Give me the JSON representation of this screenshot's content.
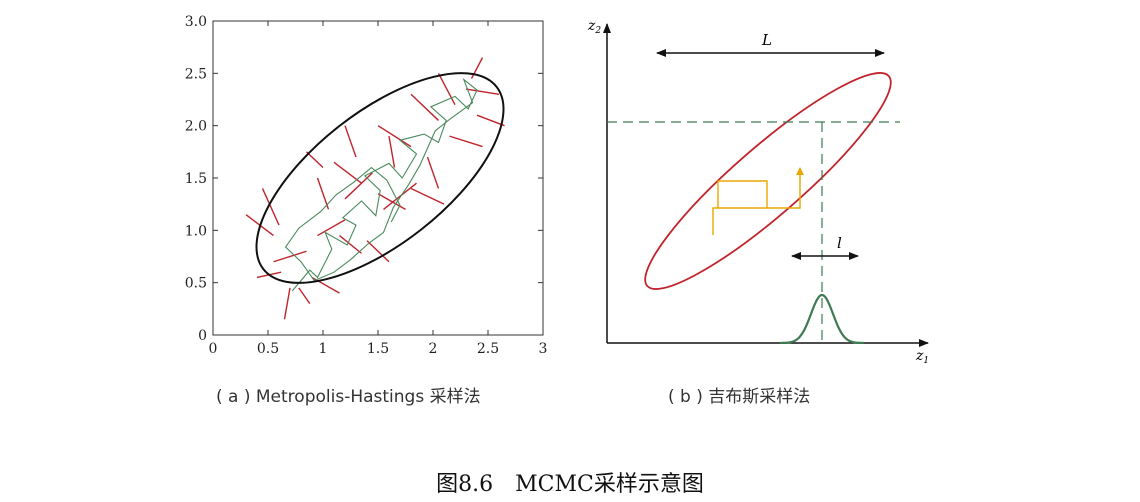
{
  "figure": {
    "title": "图8.6　MCMC采样示意图",
    "panel_a": {
      "caption": "( a ) Metropolis-Hastings 采样法"
    },
    "panel_b": {
      "caption": "( b ) 吉布斯采样法",
      "z1_label": "z",
      "z1_sub": "1",
      "z2_label": "z",
      "z2_sub": "2",
      "L_label": "L",
      "l_label": "l"
    }
  },
  "chart_data": {
    "type": "scatter",
    "xlim": [
      0,
      3
    ],
    "ylim": [
      0,
      3
    ],
    "x_ticks": [
      "0",
      "0.5",
      "1",
      "1.5",
      "2",
      "2.5",
      "3"
    ],
    "y_ticks": [
      "0",
      "0.5",
      "1.0",
      "1.5",
      "2.0",
      "2.5",
      "3.0"
    ],
    "grid": false,
    "colors": {
      "ellipse": "#111111",
      "accepted": "#4a8a5c",
      "rejected": "#c0242b"
    },
    "series": [
      {
        "path": [
          [
            0.72,
            0.42
          ],
          [
            0.88,
            0.62
          ],
          [
            0.95,
            0.55
          ],
          [
            1.08,
            0.82
          ],
          [
            1.02,
            0.98
          ],
          [
            1.22,
            0.86
          ],
          [
            1.3,
            1.05
          ],
          [
            1.18,
            1.12
          ],
          [
            1.35,
            1.28
          ],
          [
            1.48,
            1.14
          ],
          [
            1.52,
            1.38
          ],
          [
            1.38,
            1.52
          ],
          [
            1.6,
            1.64
          ],
          [
            1.72,
            1.5
          ],
          [
            1.85,
            1.73
          ],
          [
            1.7,
            1.86
          ],
          [
            1.92,
            1.92
          ],
          [
            2.05,
            1.84
          ],
          [
            2.12,
            2.05
          ],
          [
            1.98,
            2.18
          ],
          [
            2.2,
            2.28
          ],
          [
            2.32,
            2.16
          ],
          [
            2.4,
            2.34
          ],
          [
            2.28,
            2.44
          ],
          [
            2.36,
            2.22
          ],
          [
            2.15,
            2.06
          ],
          [
            2.02,
            1.95
          ],
          [
            1.88,
            1.62
          ],
          [
            1.78,
            1.44
          ],
          [
            1.64,
            1.22
          ],
          [
            1.55,
            0.98
          ],
          [
            1.42,
            0.88
          ],
          [
            1.25,
            0.72
          ],
          [
            1.1,
            0.6
          ],
          [
            0.92,
            0.52
          ],
          [
            0.8,
            0.7
          ],
          [
            0.66,
            0.84
          ],
          [
            0.78,
            1.02
          ],
          [
            0.98,
            1.18
          ],
          [
            1.12,
            1.34
          ],
          [
            1.28,
            1.46
          ],
          [
            1.44,
            1.6
          ],
          [
            1.58,
            1.48
          ],
          [
            1.7,
            1.24
          ],
          [
            1.62,
            1.08
          ]
        ]
      },
      {
        "segments": [
          [
            [
              0.55,
              0.95
            ],
            [
              0.3,
              1.15
            ]
          ],
          [
            [
              0.62,
              0.6
            ],
            [
              0.4,
              0.55
            ]
          ],
          [
            [
              0.7,
              0.45
            ],
            [
              0.65,
              0.15
            ]
          ],
          [
            [
              0.78,
              0.45
            ],
            [
              0.88,
              0.3
            ]
          ],
          [
            [
              0.9,
              0.55
            ],
            [
              1.15,
              0.4
            ]
          ],
          [
            [
              0.6,
              1.05
            ],
            [
              0.45,
              1.4
            ]
          ],
          [
            [
              0.95,
              0.95
            ],
            [
              1.2,
              1.1
            ]
          ],
          [
            [
              1.05,
              1.2
            ],
            [
              0.95,
              1.5
            ]
          ],
          [
            [
              1.2,
              1.3
            ],
            [
              1.45,
              1.55
            ]
          ],
          [
            [
              1.35,
              1.45
            ],
            [
              1.1,
              1.65
            ]
          ],
          [
            [
              1.4,
              0.9
            ],
            [
              1.6,
              0.7
            ]
          ],
          [
            [
              1.55,
              1.2
            ],
            [
              1.85,
              1.45
            ]
          ],
          [
            [
              1.65,
              1.6
            ],
            [
              1.6,
              1.9
            ]
          ],
          [
            [
              1.8,
              1.4
            ],
            [
              2.1,
              1.25
            ]
          ],
          [
            [
              1.8,
              1.8
            ],
            [
              1.5,
              2.0
            ]
          ],
          [
            [
              1.95,
              1.7
            ],
            [
              2.05,
              1.4
            ]
          ],
          [
            [
              2.05,
              2.05
            ],
            [
              1.8,
              2.3
            ]
          ],
          [
            [
              2.15,
              1.9
            ],
            [
              2.45,
              1.8
            ]
          ],
          [
            [
              2.2,
              2.2
            ],
            [
              2.05,
              2.5
            ]
          ],
          [
            [
              2.3,
              2.35
            ],
            [
              2.6,
              2.3
            ]
          ],
          [
            [
              2.4,
              2.1
            ],
            [
              2.65,
              2.0
            ]
          ],
          [
            [
              2.35,
              2.45
            ],
            [
              2.45,
              2.65
            ]
          ],
          [
            [
              1.3,
              1.7
            ],
            [
              1.2,
              2.0
            ]
          ],
          [
            [
              1.0,
              1.6
            ],
            [
              0.85,
              1.75
            ]
          ],
          [
            [
              0.85,
              0.8
            ],
            [
              0.55,
              0.7
            ]
          ],
          [
            [
              1.5,
              1.35
            ],
            [
              1.75,
              1.2
            ]
          ],
          [
            [
              1.15,
              0.95
            ],
            [
              1.35,
              0.78
            ]
          ]
        ]
      }
    ]
  }
}
